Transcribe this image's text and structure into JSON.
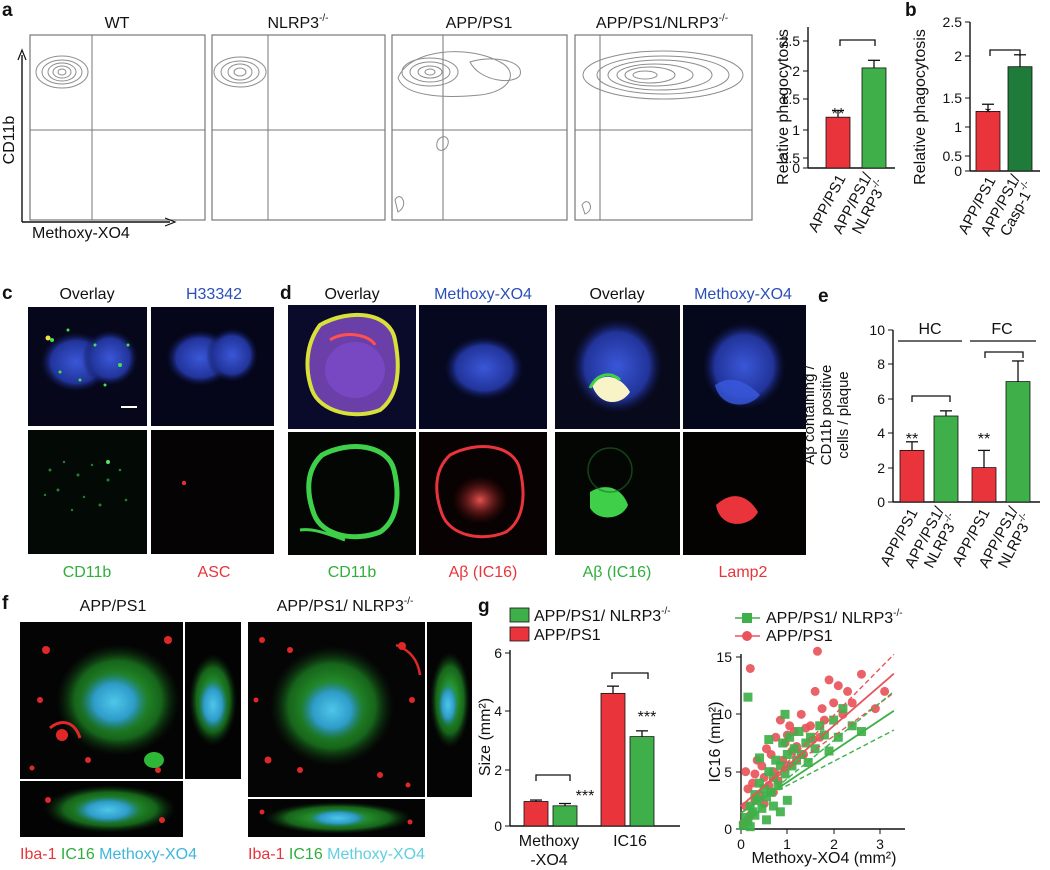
{
  "colors": {
    "red": "#e8343a",
    "green": "#3fb049",
    "dark_green": "#1e7b3a",
    "blue_text": "#2b4fb8",
    "cyan_text": "#5fd0e0",
    "contour": "#8c8c8c",
    "axis": "#111111"
  },
  "panels": {
    "a": {
      "letter": "a",
      "xlabel": "Methoxy-XO4",
      "ylabel": "CD11b",
      "flow_titles": [
        {
          "text": "WT",
          "sup": ""
        },
        {
          "text": "NLRP3",
          "sup": "-/-"
        },
        {
          "text": "APP/PS1",
          "sup": ""
        },
        {
          "text": "APP/PS1/NLRP3",
          "sup": "-/-"
        }
      ],
      "bar_ylabel": "Relative phagocytosis",
      "bar_ticks": [
        "0",
        "0.5",
        "1",
        "1.5",
        "2",
        "2.5"
      ],
      "cat1": "APP/PS1",
      "cat2_line1": "APP/PS1/",
      "cat2_line2": "NLRP3",
      "cat2_sup": "-/-",
      "sig": "**"
    },
    "b": {
      "letter": "b",
      "bar_ylabel": "Relative phagocytosis",
      "bar_ticks": [
        "0",
        "0.5",
        "1",
        "1.5",
        "2",
        "2.5"
      ],
      "cat1": "APP/PS1",
      "cat2_line1": "APP/PS1/",
      "cat2_line2": "Casp-1",
      "cat2_sup": "-/-",
      "sig": "*"
    },
    "c": {
      "letter": "c",
      "top_left": "Overlay",
      "top_right": "H33342",
      "bottom_left": "CD11b",
      "bottom_right": "ASC"
    },
    "d": {
      "letter": "d",
      "set1_top_left": "Overlay",
      "set1_top_right": "Methoxy-XO4",
      "set1_bottom_left": "CD11b",
      "set1_bottom_right": "Aβ (IC16)",
      "set2_top_left": "Overlay",
      "set2_top_right": "Methoxy-XO4",
      "set2_bottom_left": "Aβ (IC16)",
      "set2_bottom_right": "Lamp2"
    },
    "e": {
      "letter": "e",
      "ylabel_l1": "Aβ containing /",
      "ylabel_l2": "CD11b positive",
      "ylabel_l3": "cells / plaque",
      "ticks": [
        "0",
        "2",
        "4",
        "6",
        "8",
        "10"
      ],
      "group1": "HC",
      "group2": "FC",
      "cat1": "APP/PS1",
      "cat2_line1": "APP/PS1/",
      "cat2_line2": "NLRP3",
      "cat2_sup": "-/-",
      "sig": "**"
    },
    "f": {
      "letter": "f",
      "title1": "APP/PS1",
      "title2": "APP/PS1/ NLRP3",
      "title2_sup": "-/-",
      "legend_iba": "Iba-1",
      "legend_ic16": "IC16",
      "legend_mxo4": "Methoxy-XO4"
    },
    "g": {
      "letter": "g",
      "legend_green": "APP/PS1/ NLRP3",
      "legend_green_sup": "-/-",
      "legend_red": "APP/PS1",
      "bar_ylabel": "Size (mm²)",
      "bar_ticks": [
        "0",
        "2",
        "4",
        "6"
      ],
      "cat1_l1": "Methoxy",
      "cat1_l2": "-XO4",
      "cat2": "IC16",
      "sig": "***",
      "scatter_ylabel": "IC16 (mm²)",
      "scatter_xlabel": "Methoxy-XO4 (mm²)",
      "scatter_xticks": [
        "0",
        "1",
        "2",
        "3"
      ],
      "scatter_yticks": [
        "0",
        "5",
        "10",
        "15"
      ]
    }
  },
  "chart_data": [
    {
      "type": "bar",
      "panel": "a",
      "ylabel": "Relative phagocytosis",
      "categories": [
        "APP/PS1",
        "APP/PS1/NLRP3-/-"
      ],
      "values": [
        1.0,
        1.97
      ],
      "errors": [
        0.13,
        0.15
      ],
      "ylim": [
        0,
        2.5
      ],
      "significance": "**"
    },
    {
      "type": "bar",
      "panel": "b",
      "ylabel": "Relative phagocytosis",
      "categories": [
        "APP/PS1",
        "APP/PS1/Casp-1-/-"
      ],
      "values": [
        1.0,
        1.75
      ],
      "errors": [
        0.12,
        0.2
      ],
      "ylim": [
        0,
        2.5
      ],
      "significance": "*"
    },
    {
      "type": "bar",
      "panel": "e",
      "ylabel": "Aβ containing / CD11b positive cells / plaque",
      "groups": [
        "HC",
        "FC"
      ],
      "categories": [
        "APP/PS1",
        "APP/PS1/NLRP3-/-"
      ],
      "series": [
        {
          "name": "HC",
          "values": [
            3.0,
            5.0
          ],
          "errors": [
            0.5,
            0.3
          ]
        },
        {
          "name": "FC",
          "values": [
            2.0,
            7.0
          ],
          "errors": [
            1.0,
            1.2
          ]
        }
      ],
      "ylim": [
        0,
        10
      ],
      "significance": "**"
    },
    {
      "type": "bar",
      "panel": "g",
      "ylabel": "Size (mm²)",
      "categories": [
        "Methoxy-XO4",
        "IC16"
      ],
      "series": [
        {
          "name": "APP/PS1",
          "values": [
            0.85,
            4.6
          ],
          "errors": [
            0.05,
            0.25
          ]
        },
        {
          "name": "APP/PS1/ NLRP3-/-",
          "values": [
            0.7,
            3.1
          ],
          "errors": [
            0.08,
            0.2
          ]
        }
      ],
      "ylim": [
        0,
        6
      ],
      "significance": "***"
    },
    {
      "type": "scatter",
      "panel": "g",
      "xlabel": "Methoxy-XO4 (mm²)",
      "ylabel": "IC16 (mm²)",
      "xlim": [
        0,
        3.5
      ],
      "ylim": [
        0,
        16
      ],
      "series": [
        {
          "name": "APP/PS1",
          "marker": "circle",
          "points": [
            [
              0.05,
              0.5
            ],
            [
              0.1,
              2.0
            ],
            [
              0.15,
              3.5
            ],
            [
              0.2,
              1.2
            ],
            [
              0.1,
              5.0
            ],
            [
              0.25,
              4.0
            ],
            [
              0.3,
              2.5
            ],
            [
              0.35,
              6.0
            ],
            [
              0.2,
              14.0
            ],
            [
              0.4,
              3.0
            ],
            [
              0.45,
              5.5
            ],
            [
              0.5,
              4.5
            ],
            [
              0.55,
              7.0
            ],
            [
              0.6,
              3.8
            ],
            [
              0.65,
              6.5
            ],
            [
              0.7,
              5.0
            ],
            [
              0.75,
              8.0
            ],
            [
              0.8,
              4.2
            ],
            [
              0.85,
              9.5
            ],
            [
              0.9,
              6.0
            ],
            [
              0.95,
              7.5
            ],
            [
              1.0,
              5.5
            ],
            [
              1.05,
              9.0
            ],
            [
              1.1,
              6.8
            ],
            [
              1.15,
              8.5
            ],
            [
              1.2,
              7.2
            ],
            [
              1.3,
              10.0
            ],
            [
              1.35,
              6.5
            ],
            [
              1.4,
              8.8
            ],
            [
              1.5,
              9.0
            ],
            [
              1.55,
              7.8
            ],
            [
              1.6,
              12.0
            ],
            [
              1.65,
              15.5
            ],
            [
              1.7,
              8.0
            ],
            [
              1.75,
              10.5
            ],
            [
              1.8,
              9.5
            ],
            [
              1.9,
              13.0
            ],
            [
              2.0,
              11.0
            ],
            [
              2.1,
              12.5
            ],
            [
              2.2,
              10.0
            ],
            [
              2.3,
              12.0
            ],
            [
              2.4,
              11.0
            ],
            [
              2.6,
              13.5
            ],
            [
              2.9,
              10.5
            ],
            [
              3.1,
              12.0
            ],
            [
              0.15,
              0.8
            ],
            [
              0.3,
              4.8
            ],
            [
              0.5,
              2.2
            ],
            [
              0.7,
              3.2
            ],
            [
              1.0,
              8.2
            ]
          ]
        },
        {
          "name": "APP/PS1/NLRP3-/-",
          "marker": "square",
          "points": [
            [
              0.05,
              0.3
            ],
            [
              0.1,
              1.0
            ],
            [
              0.15,
              0.6
            ],
            [
              0.2,
              2.0
            ],
            [
              0.25,
              1.5
            ],
            [
              0.3,
              3.0
            ],
            [
              0.15,
              11.5
            ],
            [
              0.35,
              2.5
            ],
            [
              0.4,
              4.0
            ],
            [
              0.45,
              1.8
            ],
            [
              0.5,
              3.5
            ],
            [
              0.55,
              2.8
            ],
            [
              0.6,
              5.0
            ],
            [
              0.65,
              3.2
            ],
            [
              0.7,
              4.5
            ],
            [
              0.75,
              6.0
            ],
            [
              0.8,
              3.8
            ],
            [
              0.85,
              5.5
            ],
            [
              0.9,
              7.5
            ],
            [
              0.95,
              4.8
            ],
            [
              1.0,
              6.5
            ],
            [
              1.05,
              8.0
            ],
            [
              1.1,
              5.5
            ],
            [
              1.15,
              7.0
            ],
            [
              1.2,
              6.0
            ],
            [
              1.25,
              8.5
            ],
            [
              1.3,
              6.5
            ],
            [
              1.4,
              7.5
            ],
            [
              1.45,
              5.8
            ],
            [
              1.5,
              8.0
            ],
            [
              1.6,
              7.0
            ],
            [
              1.7,
              9.0
            ],
            [
              1.8,
              8.2
            ],
            [
              1.9,
              6.8
            ],
            [
              2.0,
              9.5
            ],
            [
              2.1,
              8.0
            ],
            [
              2.2,
              10.5
            ],
            [
              2.4,
              9.0
            ],
            [
              2.6,
              8.5
            ],
            [
              0.2,
              0.2
            ],
            [
              0.3,
              1.2
            ],
            [
              0.55,
              0.8
            ],
            [
              0.7,
              2.0
            ],
            [
              0.85,
              1.5
            ],
            [
              1.0,
              2.5
            ],
            [
              0.4,
              6.2
            ],
            [
              0.6,
              7.8
            ],
            [
              0.95,
              10.0
            ]
          ]
        }
      ],
      "fits": [
        {
          "name": "APP/PS1",
          "slope": 3.5,
          "intercept": 2.0
        },
        {
          "name": "APP/PS1/NLRP3-/-",
          "slope": 2.7,
          "intercept": 1.4
        }
      ]
    }
  ]
}
